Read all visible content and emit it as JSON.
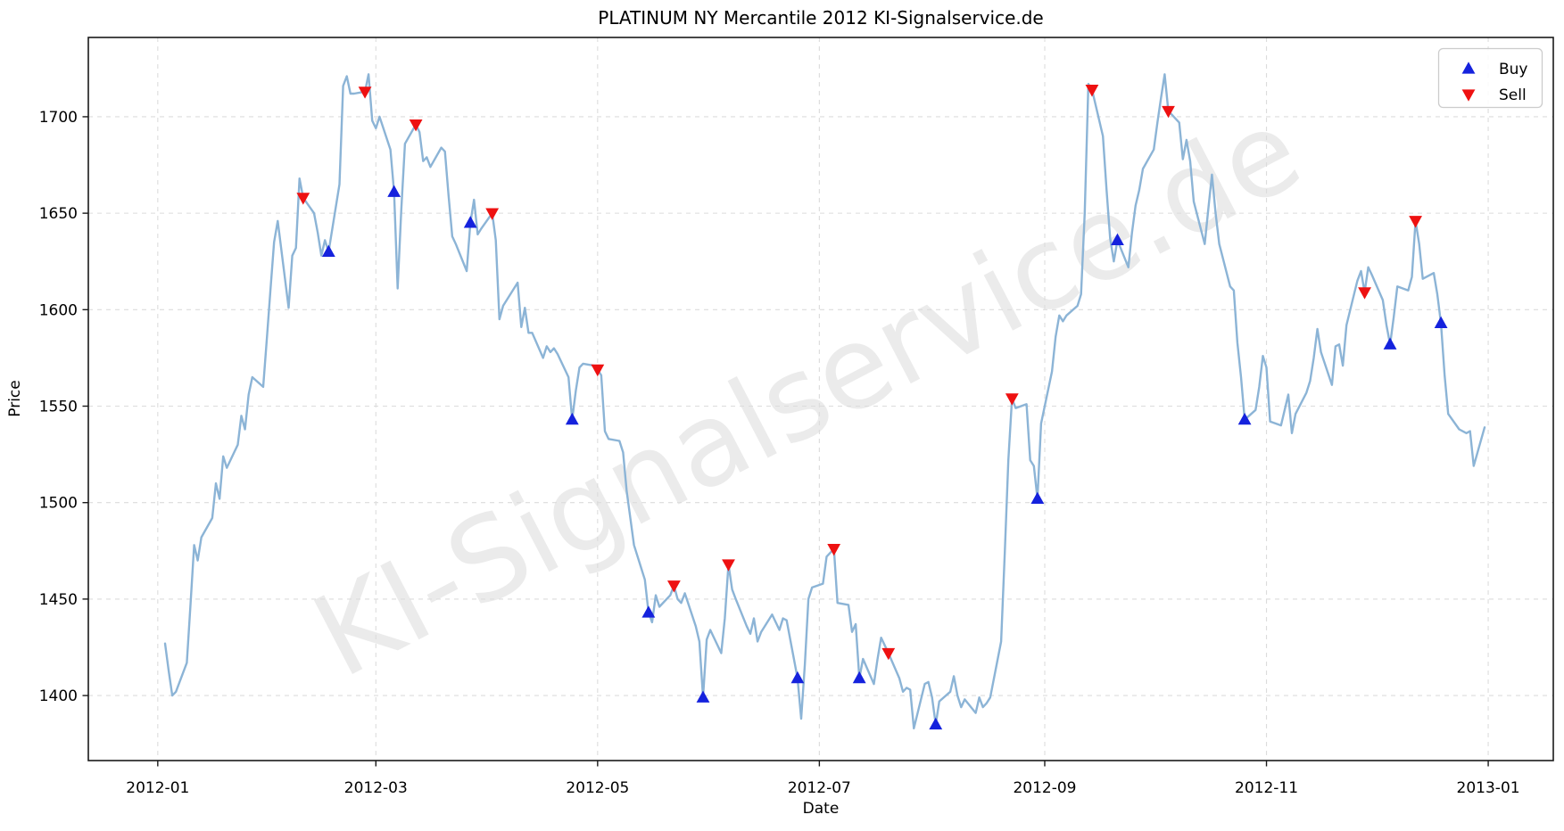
{
  "chart_data": {
    "type": "line",
    "title": "PLATINUM NY Mercantile 2012 KI-Signalservice.de",
    "xlabel": "Date",
    "ylabel": "Price",
    "watermark": "KI-Signalservice.de",
    "legend": {
      "buy_label": "Buy",
      "sell_label": "Sell",
      "position": "upper right"
    },
    "grid": "dashed",
    "colors": {
      "line": "#8cb4d6",
      "buy": "#1522dd",
      "sell": "#ee1111",
      "grid": "#dcdcdc",
      "spine": "#1a1a1a",
      "watermark": "#ebebeb"
    },
    "x_ticks": [
      {
        "label": "2012-01",
        "date": "2012-01-01"
      },
      {
        "label": "2012-03",
        "date": "2012-03-01"
      },
      {
        "label": "2012-05",
        "date": "2012-05-01"
      },
      {
        "label": "2012-07",
        "date": "2012-07-01"
      },
      {
        "label": "2012-09",
        "date": "2012-09-01"
      },
      {
        "label": "2012-11",
        "date": "2012-11-01"
      },
      {
        "label": "2013-01",
        "date": "2013-01-01"
      }
    ],
    "y_ticks": [
      1400,
      1450,
      1500,
      1550,
      1600,
      1650,
      1700
    ],
    "xlim_days": [
      -19.1,
      383.9
    ],
    "ylim": [
      1366.3,
      1741.1
    ],
    "x_epoch": "2012-01-01",
    "series": [
      [
        "2012-01-03",
        1427
      ],
      [
        "2012-01-04",
        1413
      ],
      [
        "2012-01-05",
        1400
      ],
      [
        "2012-01-06",
        1402
      ],
      [
        "2012-01-09",
        1417
      ],
      [
        "2012-01-10",
        1447
      ],
      [
        "2012-01-11",
        1478
      ],
      [
        "2012-01-12",
        1470
      ],
      [
        "2012-01-13",
        1482
      ],
      [
        "2012-01-16",
        1492
      ],
      [
        "2012-01-17",
        1510
      ],
      [
        "2012-01-18",
        1502
      ],
      [
        "2012-01-19",
        1524
      ],
      [
        "2012-01-20",
        1518
      ],
      [
        "2012-01-23",
        1530
      ],
      [
        "2012-01-24",
        1545
      ],
      [
        "2012-01-25",
        1538
      ],
      [
        "2012-01-26",
        1556
      ],
      [
        "2012-01-27",
        1565
      ],
      [
        "2012-01-30",
        1560
      ],
      [
        "2012-01-31",
        1585
      ],
      [
        "2012-02-01",
        1610
      ],
      [
        "2012-02-02",
        1635
      ],
      [
        "2012-02-03",
        1646
      ],
      [
        "2012-02-06",
        1601
      ],
      [
        "2012-02-07",
        1628
      ],
      [
        "2012-02-08",
        1632
      ],
      [
        "2012-02-09",
        1668
      ],
      [
        "2012-02-10",
        1658
      ],
      [
        "2012-02-13",
        1650
      ],
      [
        "2012-02-14",
        1640
      ],
      [
        "2012-02-15",
        1628
      ],
      [
        "2012-02-16",
        1636
      ],
      [
        "2012-02-17",
        1630
      ],
      [
        "2012-02-20",
        1665
      ],
      [
        "2012-02-21",
        1716
      ],
      [
        "2012-02-22",
        1721
      ],
      [
        "2012-02-23",
        1712
      ],
      [
        "2012-02-24",
        1712
      ],
      [
        "2012-02-27",
        1713
      ],
      [
        "2012-02-28",
        1722
      ],
      [
        "2012-02-29",
        1698
      ],
      [
        "2012-03-01",
        1694
      ],
      [
        "2012-03-02",
        1700
      ],
      [
        "2012-03-05",
        1683
      ],
      [
        "2012-03-06",
        1661
      ],
      [
        "2012-03-07",
        1611
      ],
      [
        "2012-03-08",
        1652
      ],
      [
        "2012-03-09",
        1686
      ],
      [
        "2012-03-12",
        1696
      ],
      [
        "2012-03-13",
        1692
      ],
      [
        "2012-03-14",
        1677
      ],
      [
        "2012-03-15",
        1679
      ],
      [
        "2012-03-16",
        1674
      ],
      [
        "2012-03-19",
        1684
      ],
      [
        "2012-03-20",
        1682
      ],
      [
        "2012-03-21",
        1659
      ],
      [
        "2012-03-22",
        1638
      ],
      [
        "2012-03-23",
        1634
      ],
      [
        "2012-03-26",
        1620
      ],
      [
        "2012-03-27",
        1645
      ],
      [
        "2012-03-28",
        1657
      ],
      [
        "2012-03-29",
        1639
      ],
      [
        "2012-03-30",
        1642
      ],
      [
        "2012-04-02",
        1650
      ],
      [
        "2012-04-03",
        1636
      ],
      [
        "2012-04-04",
        1595
      ],
      [
        "2012-04-05",
        1602
      ],
      [
        "2012-04-09",
        1614
      ],
      [
        "2012-04-10",
        1591
      ],
      [
        "2012-04-11",
        1601
      ],
      [
        "2012-04-12",
        1588
      ],
      [
        "2012-04-13",
        1588
      ],
      [
        "2012-04-16",
        1575
      ],
      [
        "2012-04-17",
        1581
      ],
      [
        "2012-04-18",
        1578
      ],
      [
        "2012-04-19",
        1580
      ],
      [
        "2012-04-20",
        1577
      ],
      [
        "2012-04-23",
        1565
      ],
      [
        "2012-04-24",
        1543
      ],
      [
        "2012-04-25",
        1558
      ],
      [
        "2012-04-26",
        1570
      ],
      [
        "2012-04-27",
        1572
      ],
      [
        "2012-04-30",
        1571
      ],
      [
        "2012-05-01",
        1569
      ],
      [
        "2012-05-02",
        1566
      ],
      [
        "2012-05-03",
        1537
      ],
      [
        "2012-05-04",
        1533
      ],
      [
        "2012-05-07",
        1532
      ],
      [
        "2012-05-08",
        1526
      ],
      [
        "2012-05-09",
        1506
      ],
      [
        "2012-05-10",
        1492
      ],
      [
        "2012-05-11",
        1478
      ],
      [
        "2012-05-14",
        1460
      ],
      [
        "2012-05-15",
        1443
      ],
      [
        "2012-05-16",
        1438
      ],
      [
        "2012-05-17",
        1452
      ],
      [
        "2012-05-18",
        1446
      ],
      [
        "2012-05-21",
        1452
      ],
      [
        "2012-05-22",
        1457
      ],
      [
        "2012-05-23",
        1450
      ],
      [
        "2012-05-24",
        1448
      ],
      [
        "2012-05-25",
        1453
      ],
      [
        "2012-05-28",
        1436
      ],
      [
        "2012-05-29",
        1428
      ],
      [
        "2012-05-30",
        1399
      ],
      [
        "2012-05-31",
        1429
      ],
      [
        "2012-06-01",
        1434
      ],
      [
        "2012-06-04",
        1422
      ],
      [
        "2012-06-05",
        1440
      ],
      [
        "2012-06-06",
        1468
      ],
      [
        "2012-06-07",
        1455
      ],
      [
        "2012-06-08",
        1450
      ],
      [
        "2012-06-11",
        1436
      ],
      [
        "2012-06-12",
        1432
      ],
      [
        "2012-06-13",
        1440
      ],
      [
        "2012-06-14",
        1428
      ],
      [
        "2012-06-15",
        1433
      ],
      [
        "2012-06-18",
        1442
      ],
      [
        "2012-06-19",
        1438
      ],
      [
        "2012-06-20",
        1434
      ],
      [
        "2012-06-21",
        1440
      ],
      [
        "2012-06-22",
        1439
      ],
      [
        "2012-06-25",
        1409
      ],
      [
        "2012-06-26",
        1388
      ],
      [
        "2012-06-27",
        1416
      ],
      [
        "2012-06-28",
        1450
      ],
      [
        "2012-06-29",
        1456
      ],
      [
        "2012-07-02",
        1458
      ],
      [
        "2012-07-03",
        1472
      ],
      [
        "2012-07-05",
        1476
      ],
      [
        "2012-07-06",
        1448
      ],
      [
        "2012-07-09",
        1447
      ],
      [
        "2012-07-10",
        1433
      ],
      [
        "2012-07-11",
        1437
      ],
      [
        "2012-07-12",
        1409
      ],
      [
        "2012-07-13",
        1419
      ],
      [
        "2012-07-16",
        1406
      ],
      [
        "2012-07-17",
        1419
      ],
      [
        "2012-07-18",
        1430
      ],
      [
        "2012-07-19",
        1426
      ],
      [
        "2012-07-20",
        1422
      ],
      [
        "2012-07-23",
        1409
      ],
      [
        "2012-07-24",
        1402
      ],
      [
        "2012-07-25",
        1404
      ],
      [
        "2012-07-26",
        1403
      ],
      [
        "2012-07-27",
        1383
      ],
      [
        "2012-07-30",
        1406
      ],
      [
        "2012-07-31",
        1407
      ],
      [
        "2012-08-01",
        1399
      ],
      [
        "2012-08-02",
        1385
      ],
      [
        "2012-08-03",
        1397
      ],
      [
        "2012-08-06",
        1402
      ],
      [
        "2012-08-07",
        1410
      ],
      [
        "2012-08-08",
        1400
      ],
      [
        "2012-08-09",
        1394
      ],
      [
        "2012-08-10",
        1398
      ],
      [
        "2012-08-13",
        1391
      ],
      [
        "2012-08-14",
        1399
      ],
      [
        "2012-08-15",
        1394
      ],
      [
        "2012-08-16",
        1396
      ],
      [
        "2012-08-17",
        1399
      ],
      [
        "2012-08-20",
        1428
      ],
      [
        "2012-08-21",
        1474
      ],
      [
        "2012-08-22",
        1522
      ],
      [
        "2012-08-23",
        1554
      ],
      [
        "2012-08-24",
        1549
      ],
      [
        "2012-08-27",
        1551
      ],
      [
        "2012-08-28",
        1522
      ],
      [
        "2012-08-29",
        1519
      ],
      [
        "2012-08-30",
        1502
      ],
      [
        "2012-08-31",
        1541
      ],
      [
        "2012-09-03",
        1568
      ],
      [
        "2012-09-04",
        1586
      ],
      [
        "2012-09-05",
        1597
      ],
      [
        "2012-09-06",
        1594
      ],
      [
        "2012-09-07",
        1597
      ],
      [
        "2012-09-10",
        1602
      ],
      [
        "2012-09-11",
        1608
      ],
      [
        "2012-09-12",
        1650
      ],
      [
        "2012-09-13",
        1717
      ],
      [
        "2012-09-14",
        1714
      ],
      [
        "2012-09-17",
        1690
      ],
      [
        "2012-09-18",
        1662
      ],
      [
        "2012-09-19",
        1637
      ],
      [
        "2012-09-20",
        1625
      ],
      [
        "2012-09-21",
        1636
      ],
      [
        "2012-09-24",
        1622
      ],
      [
        "2012-09-25",
        1640
      ],
      [
        "2012-09-26",
        1654
      ],
      [
        "2012-09-27",
        1662
      ],
      [
        "2012-09-28",
        1673
      ],
      [
        "2012-10-01",
        1683
      ],
      [
        "2012-10-02",
        1697
      ],
      [
        "2012-10-03",
        1710
      ],
      [
        "2012-10-04",
        1722
      ],
      [
        "2012-10-05",
        1703
      ],
      [
        "2012-10-08",
        1697
      ],
      [
        "2012-10-09",
        1678
      ],
      [
        "2012-10-10",
        1688
      ],
      [
        "2012-10-11",
        1677
      ],
      [
        "2012-10-12",
        1656
      ],
      [
        "2012-10-15",
        1634
      ],
      [
        "2012-10-16",
        1652
      ],
      [
        "2012-10-17",
        1670
      ],
      [
        "2012-10-18",
        1650
      ],
      [
        "2012-10-19",
        1634
      ],
      [
        "2012-10-22",
        1612
      ],
      [
        "2012-10-23",
        1610
      ],
      [
        "2012-10-24",
        1583
      ],
      [
        "2012-10-25",
        1565
      ],
      [
        "2012-10-26",
        1543
      ],
      [
        "2012-10-29",
        1548
      ],
      [
        "2012-10-30",
        1560
      ],
      [
        "2012-10-31",
        1576
      ],
      [
        "2012-11-01",
        1570
      ],
      [
        "2012-11-02",
        1542
      ],
      [
        "2012-11-05",
        1540
      ],
      [
        "2012-11-06",
        1548
      ],
      [
        "2012-11-07",
        1556
      ],
      [
        "2012-11-08",
        1536
      ],
      [
        "2012-11-09",
        1546
      ],
      [
        "2012-11-12",
        1557
      ],
      [
        "2012-11-13",
        1563
      ],
      [
        "2012-11-14",
        1575
      ],
      [
        "2012-11-15",
        1590
      ],
      [
        "2012-11-16",
        1578
      ],
      [
        "2012-11-19",
        1561
      ],
      [
        "2012-11-20",
        1581
      ],
      [
        "2012-11-21",
        1582
      ],
      [
        "2012-11-22",
        1571
      ],
      [
        "2012-11-23",
        1592
      ],
      [
        "2012-11-26",
        1615
      ],
      [
        "2012-11-27",
        1620
      ],
      [
        "2012-11-28",
        1609
      ],
      [
        "2012-11-29",
        1622
      ],
      [
        "2012-11-30",
        1618
      ],
      [
        "2012-12-03",
        1605
      ],
      [
        "2012-12-04",
        1592
      ],
      [
        "2012-12-05",
        1582
      ],
      [
        "2012-12-06",
        1596
      ],
      [
        "2012-12-07",
        1612
      ],
      [
        "2012-12-10",
        1610
      ],
      [
        "2012-12-11",
        1617
      ],
      [
        "2012-12-12",
        1646
      ],
      [
        "2012-12-13",
        1634
      ],
      [
        "2012-12-14",
        1616
      ],
      [
        "2012-12-17",
        1619
      ],
      [
        "2012-12-18",
        1608
      ],
      [
        "2012-12-19",
        1593
      ],
      [
        "2012-12-20",
        1566
      ],
      [
        "2012-12-21",
        1546
      ],
      [
        "2012-12-24",
        1538
      ],
      [
        "2012-12-26",
        1536
      ],
      [
        "2012-12-27",
        1537
      ],
      [
        "2012-12-28",
        1519
      ],
      [
        "2012-12-31",
        1539
      ]
    ],
    "buy_signals": [
      [
        "2012-02-17",
        1630
      ],
      [
        "2012-03-06",
        1661
      ],
      [
        "2012-03-27",
        1645
      ],
      [
        "2012-04-24",
        1543
      ],
      [
        "2012-05-15",
        1443
      ],
      [
        "2012-05-30",
        1399
      ],
      [
        "2012-06-25",
        1409
      ],
      [
        "2012-07-12",
        1409
      ],
      [
        "2012-08-02",
        1385
      ],
      [
        "2012-08-30",
        1502
      ],
      [
        "2012-09-21",
        1636
      ],
      [
        "2012-10-26",
        1543
      ],
      [
        "2012-12-05",
        1582
      ],
      [
        "2012-12-19",
        1593
      ]
    ],
    "sell_signals": [
      [
        "2012-02-10",
        1658
      ],
      [
        "2012-02-27",
        1713
      ],
      [
        "2012-03-12",
        1696
      ],
      [
        "2012-04-02",
        1650
      ],
      [
        "2012-05-01",
        1569
      ],
      [
        "2012-05-22",
        1457
      ],
      [
        "2012-06-06",
        1468
      ],
      [
        "2012-07-05",
        1476
      ],
      [
        "2012-07-20",
        1422
      ],
      [
        "2012-08-23",
        1554
      ],
      [
        "2012-09-14",
        1714
      ],
      [
        "2012-10-05",
        1703
      ],
      [
        "2012-11-28",
        1609
      ],
      [
        "2012-12-12",
        1646
      ]
    ]
  }
}
